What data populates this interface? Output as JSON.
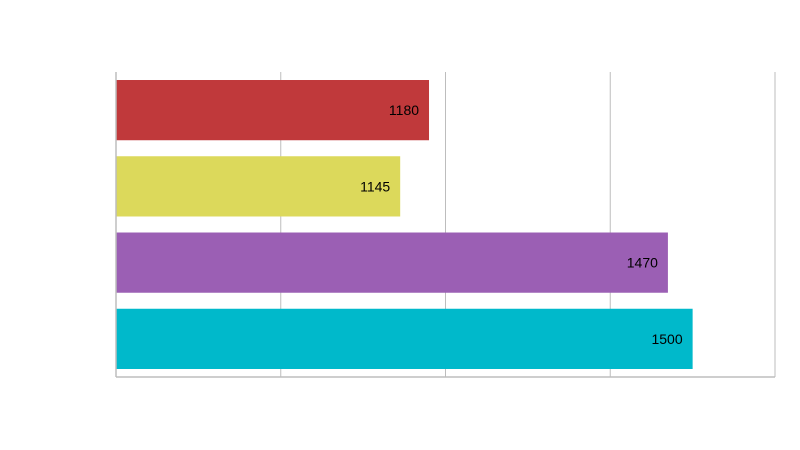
{
  "chart_data": {
    "type": "bar",
    "orientation": "horizontal",
    "title": "",
    "xlabel": "",
    "ylabel": "",
    "categories": [
      "",
      "",
      "",
      ""
    ],
    "values": [
      1180,
      1145,
      1470,
      1500
    ],
    "value_labels": [
      "1180",
      "1145",
      "1470",
      "1500"
    ],
    "colors": [
      "#c0393b",
      "#dcd95b",
      "#9b5fb4",
      "#00b9cb"
    ],
    "xlim": [
      800,
      1600
    ],
    "x_gridlines": [
      800,
      1000,
      1200,
      1400,
      1600
    ],
    "tick_labels_visible": false,
    "grid": true,
    "legend": "none",
    "grid_color": "#bdbdbd",
    "axis_color": "#bdbdbd"
  }
}
